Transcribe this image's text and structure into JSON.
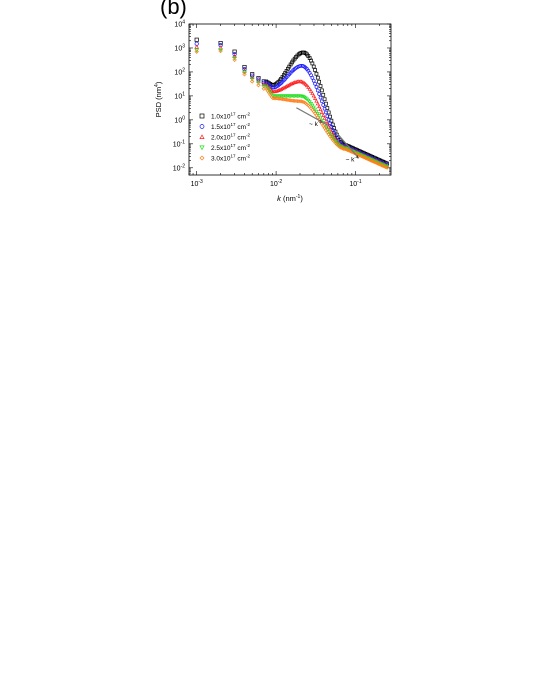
{
  "panel_label": "(b)",
  "chart_data": {
    "type": "scatter",
    "xlabel_italic": "k",
    "xlabel_unit": " (nm",
    "xlabel_unit_exp": "-1",
    "xlabel_close": ")",
    "ylabel_main": "PSD (nm",
    "ylabel_exp": "4",
    "ylabel_close": ")",
    "xscale": "log",
    "yscale": "log",
    "xlim": [
      0.0008,
      0.28
    ],
    "ylim": [
      0.005,
      10000
    ],
    "xticks": [
      {
        "base": "10",
        "exp": "-3",
        "v": 0.001
      },
      {
        "base": "10",
        "exp": "-2",
        "v": 0.01
      },
      {
        "base": "10",
        "exp": "-1",
        "v": 0.1
      }
    ],
    "yticks": [
      {
        "base": "10",
        "exp": "-2",
        "v": 0.01
      },
      {
        "base": "10",
        "exp": "-1",
        "v": 0.1
      },
      {
        "base": "10",
        "exp": "0",
        "v": 1
      },
      {
        "base": "10",
        "exp": "1",
        "v": 10
      },
      {
        "base": "10",
        "exp": "2",
        "v": 100
      },
      {
        "base": "10",
        "exp": "3",
        "v": 1000
      },
      {
        "base": "10",
        "exp": "4",
        "v": 10000
      }
    ],
    "legend_position": "left",
    "series": [
      {
        "name": "1.0x10",
        "exp": "17",
        "unit": " cm",
        "unit_exp": "-2",
        "color": "#000000",
        "marker": "square",
        "first_points": [
          [
            0.001,
            2200
          ],
          [
            0.002,
            1600
          ],
          [
            0.003,
            700
          ],
          [
            0.004,
            160
          ],
          [
            0.005,
            80
          ],
          [
            0.006,
            55
          ],
          [
            0.007,
            40
          ]
        ],
        "peak_k": 0.022,
        "peak_psd": 650,
        "valley_k": 0.009,
        "valley_psd": 28,
        "tail_psd": 0.015
      },
      {
        "name": "1.5x10",
        "exp": "17",
        "unit": " cm",
        "unit_exp": "-2",
        "color": "#1a1aff",
        "marker": "circle",
        "first_points": [
          [
            0.001,
            1500
          ],
          [
            0.002,
            1300
          ],
          [
            0.003,
            550
          ],
          [
            0.004,
            130
          ],
          [
            0.005,
            70
          ],
          [
            0.006,
            48
          ],
          [
            0.007,
            35
          ]
        ],
        "peak_k": 0.021,
        "peak_psd": 180,
        "valley_k": 0.009,
        "valley_psd": 22,
        "tail_psd": 0.013
      },
      {
        "name": "2.0x10",
        "exp": "17",
        "unit": " cm",
        "unit_exp": "-2",
        "color": "#ff2020",
        "marker": "triangle-up",
        "first_points": [
          [
            0.001,
            1100
          ],
          [
            0.002,
            1000
          ],
          [
            0.003,
            450
          ],
          [
            0.004,
            110
          ],
          [
            0.005,
            60
          ],
          [
            0.006,
            42
          ],
          [
            0.007,
            30
          ]
        ],
        "peak_k": 0.02,
        "peak_psd": 40,
        "valley_k": 0.009,
        "valley_psd": 15,
        "tail_psd": 0.012
      },
      {
        "name": "2.5x10",
        "exp": "17",
        "unit": " cm",
        "unit_exp": "-2",
        "color": "#22dd22",
        "marker": "triangle-down",
        "first_points": [
          [
            0.001,
            800
          ],
          [
            0.002,
            850
          ],
          [
            0.003,
            380
          ],
          [
            0.004,
            95
          ],
          [
            0.005,
            50
          ],
          [
            0.006,
            35
          ],
          [
            0.007,
            25
          ]
        ],
        "peak_k": 0.02,
        "peak_psd": 10,
        "valley_k": 0.009,
        "valley_psd": 10,
        "tail_psd": 0.011
      },
      {
        "name": "3.0x10",
        "exp": "17",
        "unit": " cm",
        "unit_exp": "-2",
        "color": "#ff7f1a",
        "marker": "diamond",
        "first_points": [
          [
            0.001,
            700
          ],
          [
            0.002,
            750
          ],
          [
            0.003,
            320
          ],
          [
            0.004,
            80
          ],
          [
            0.005,
            40
          ],
          [
            0.006,
            28
          ],
          [
            0.007,
            20
          ]
        ],
        "peak_k": 0.02,
        "peak_psd": 6,
        "valley_k": 0.009,
        "valley_psd": 8,
        "tail_psd": 0.01
      }
    ],
    "annotations": [
      {
        "text": "~ k",
        "exp": "-2",
        "x": 0.026,
        "y": 0.55,
        "line": [
          [
            0.018,
            3.2
          ],
          [
            0.045,
            0.6
          ]
        ]
      },
      {
        "text": "~ k",
        "exp": "-4",
        "x": 0.075,
        "y": 0.018,
        "line": [
          [
            0.06,
            0.25
          ],
          [
            0.11,
            0.025
          ]
        ]
      }
    ]
  }
}
